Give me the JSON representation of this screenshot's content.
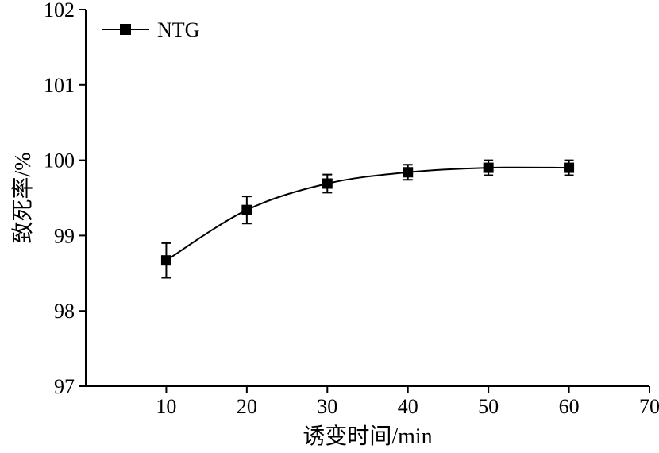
{
  "chart_data": {
    "type": "line",
    "xlabel": "诱变时间/min",
    "ylabel": "致死率/%",
    "xlim": [
      0,
      70
    ],
    "ylim": [
      97,
      102
    ],
    "xticks": [
      10,
      20,
      30,
      40,
      50,
      60,
      70
    ],
    "yticks": [
      97,
      98,
      99,
      100,
      101,
      102
    ],
    "legend_position": "top-left",
    "grid": false,
    "series": [
      {
        "name": "NTG",
        "marker": "square",
        "color": "#000000",
        "x": [
          10,
          20,
          30,
          40,
          50,
          60
        ],
        "y": [
          98.67,
          99.34,
          99.69,
          99.84,
          99.9,
          99.9
        ],
        "error": [
          0.23,
          0.18,
          0.12,
          0.1,
          0.1,
          0.1
        ]
      }
    ]
  }
}
